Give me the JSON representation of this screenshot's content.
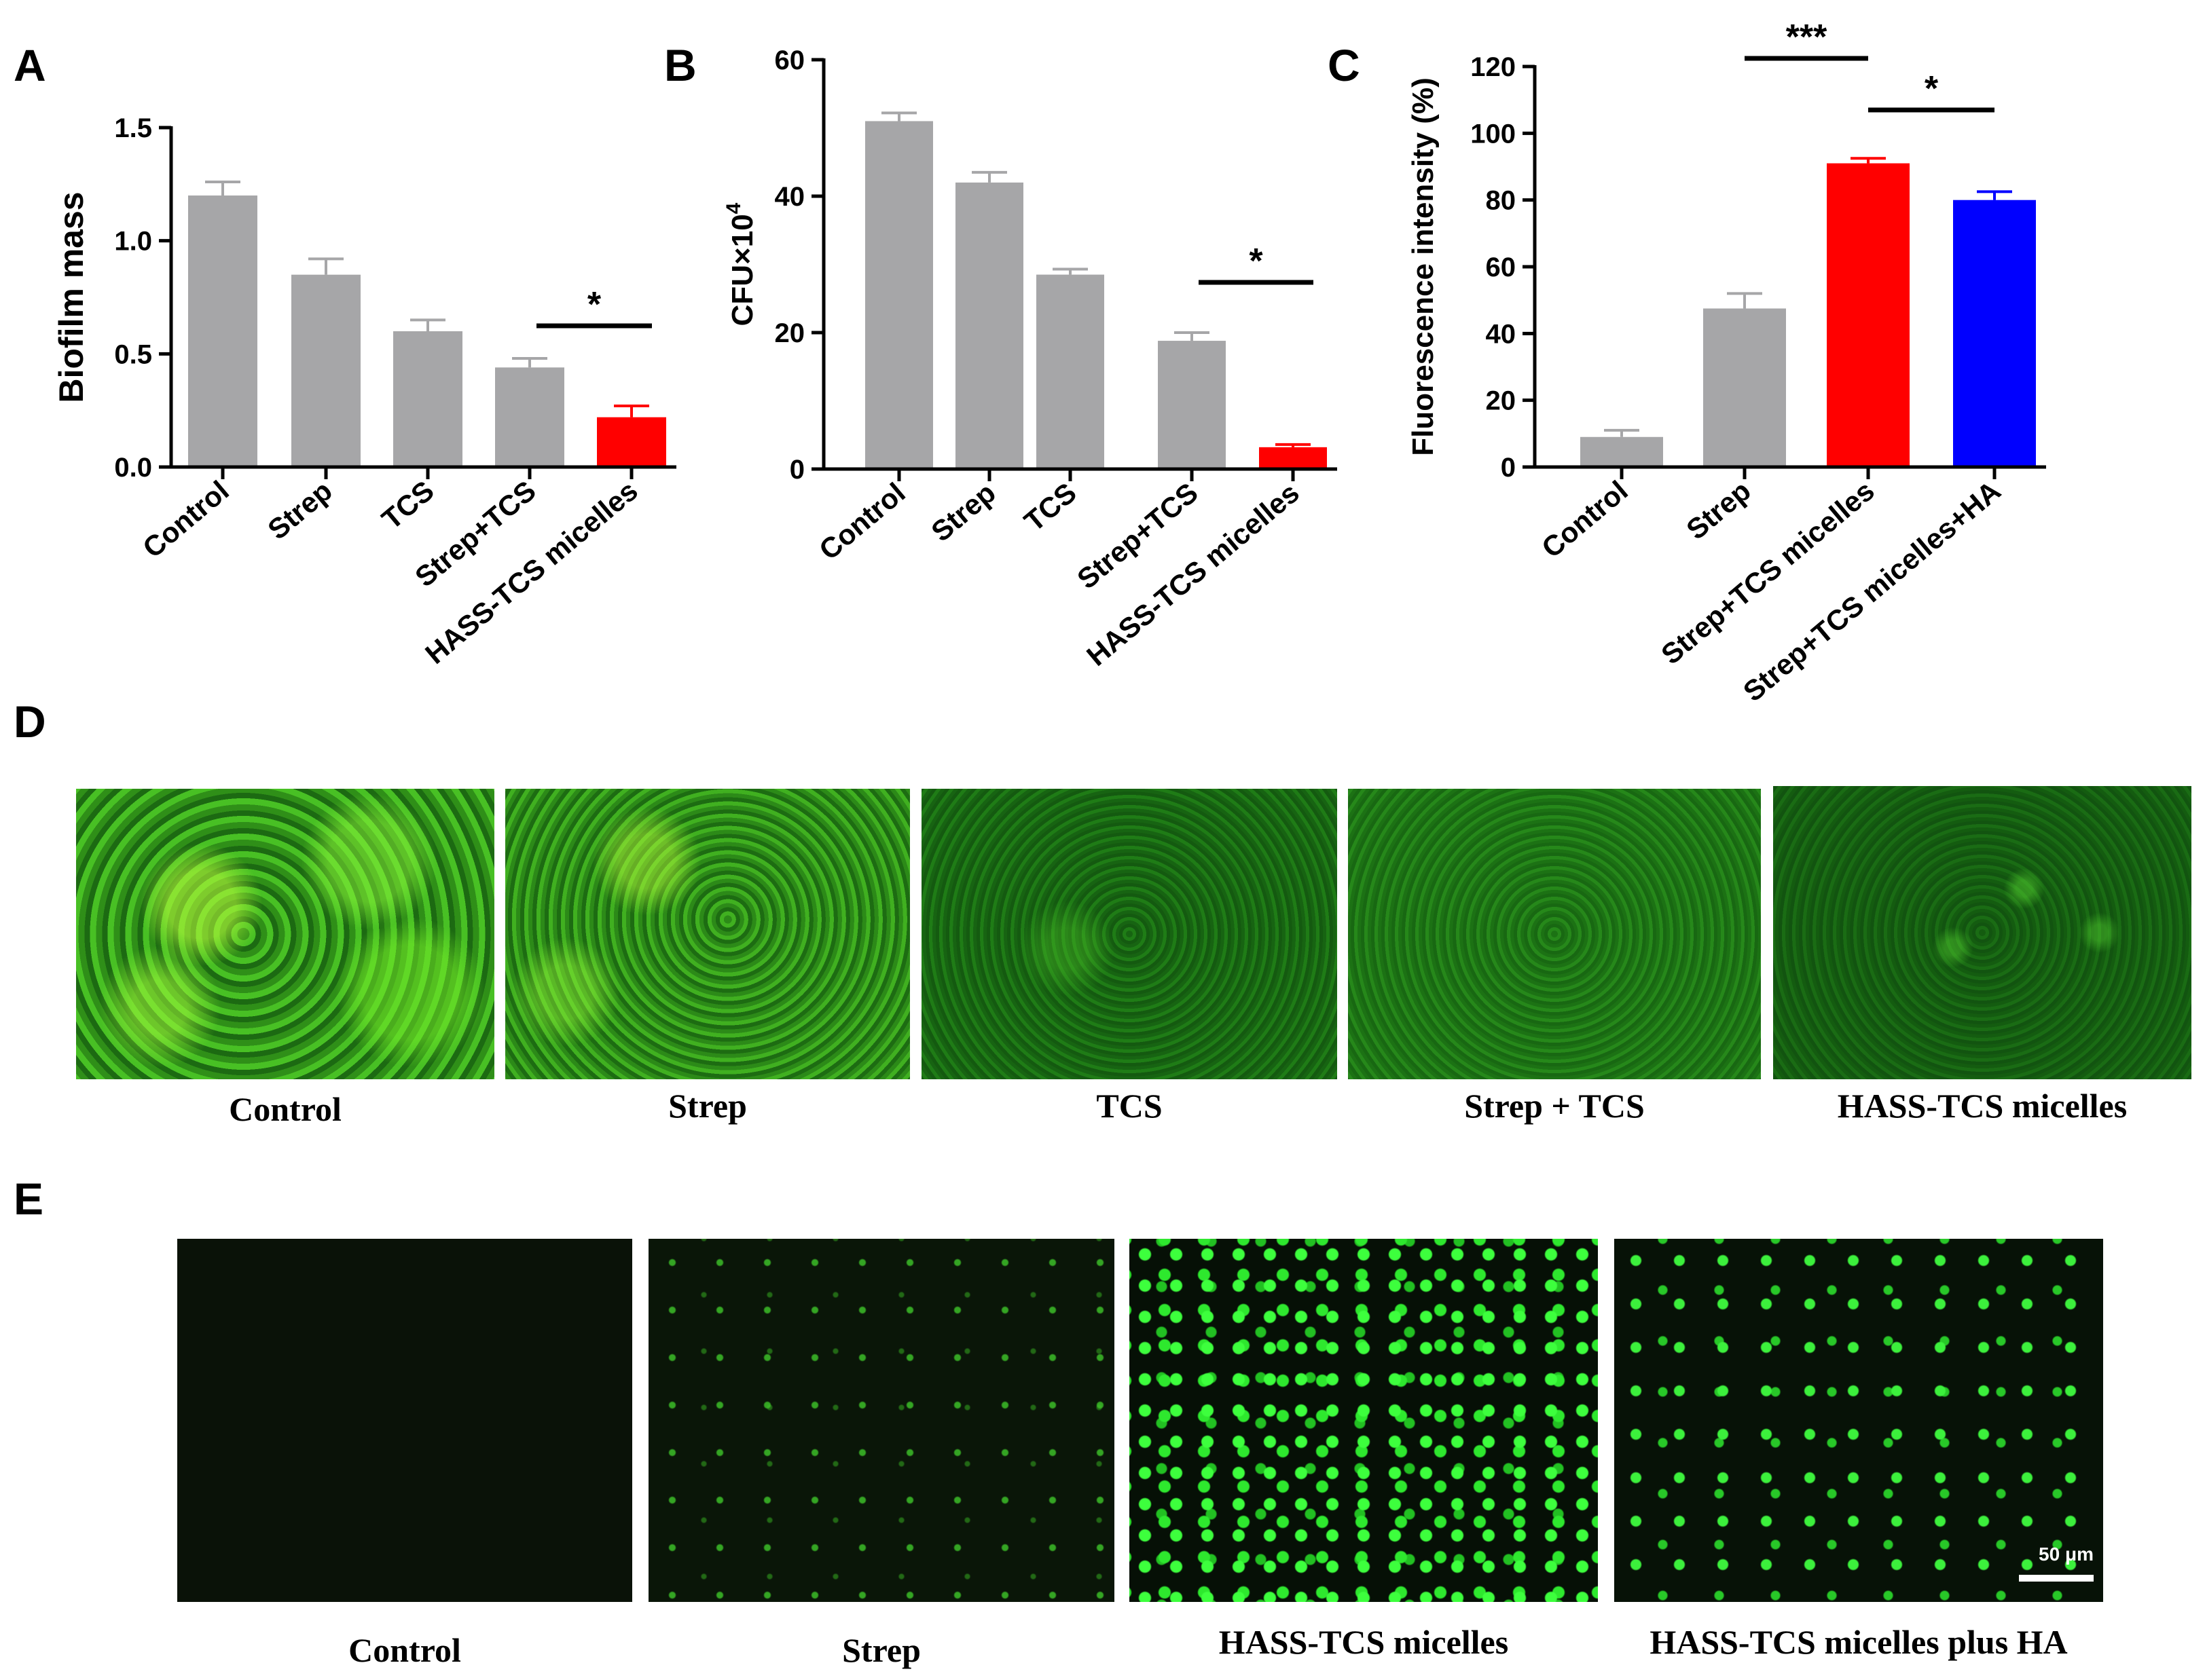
{
  "figure": {
    "panel_letters": [
      "A",
      "B",
      "C",
      "D",
      "E"
    ]
  },
  "chart_data": [
    {
      "panel": "A",
      "type": "bar",
      "ylabel": "Biofilm mass",
      "ylim": [
        0,
        1.5
      ],
      "yticks": [
        "0.0",
        "0.5",
        "1.0",
        "1.5"
      ],
      "categories": [
        "Control",
        "Strep",
        "TCS",
        "Strep+TCS",
        "HASS-TCS micelles"
      ],
      "values": [
        1.2,
        0.85,
        0.6,
        0.44,
        0.22
      ],
      "errors": [
        0.06,
        0.07,
        0.05,
        0.04,
        0.05
      ],
      "colors": [
        "#a6a6a8",
        "#a6a6a8",
        "#a6a6a8",
        "#a6a6a8",
        "#ff0000"
      ],
      "significance": [
        {
          "from": 3,
          "to": 4,
          "label": "*"
        }
      ]
    },
    {
      "panel": "B",
      "type": "bar",
      "ylabel": "CFU×10",
      "ylabel_sup": "4",
      "ylim": [
        0,
        60
      ],
      "yticks": [
        "0",
        "20",
        "40",
        "60"
      ],
      "categories": [
        "Control",
        "Strep",
        "TCS",
        "Strep+TCS",
        "HASS-TCS micelles"
      ],
      "values": [
        51,
        42,
        28.5,
        18.8,
        3.2
      ],
      "errors": [
        1.2,
        1.5,
        0.8,
        1.2,
        0.4
      ],
      "colors": [
        "#a6a6a8",
        "#a6a6a8",
        "#a6a6a8",
        "#a6a6a8",
        "#ff0000"
      ],
      "significance": [
        {
          "from": 3,
          "to": 4,
          "label": "*"
        }
      ]
    },
    {
      "panel": "C",
      "type": "bar",
      "ylabel": "Fluorescence intensity (%)",
      "ylim": [
        0,
        120
      ],
      "yticks": [
        "0",
        "20",
        "40",
        "60",
        "80",
        "100",
        "120"
      ],
      "categories": [
        "Control",
        "Strep",
        "Strep+TCS micelles",
        "Strep+TCS micelles+HA"
      ],
      "values": [
        9,
        47.5,
        91,
        80
      ],
      "errors": [
        2,
        4.5,
        1.5,
        2.5
      ],
      "colors": [
        "#a6a6a8",
        "#a6a6a8",
        "#ff0000",
        "#0000ff"
      ],
      "significance": [
        {
          "from": 1,
          "to": 2,
          "label": "***"
        },
        {
          "from": 2,
          "to": 3,
          "label": "*"
        }
      ]
    }
  ],
  "panel_d": {
    "labels": [
      "Control",
      "Strep",
      "TCS",
      "Strep + TCS",
      "HASS-TCS micelles"
    ]
  },
  "panel_e": {
    "labels": [
      "Control",
      "Strep",
      "HASS-TCS micelles",
      "HASS-TCS micelles plus HA"
    ],
    "scale_bar": "50 μm"
  }
}
